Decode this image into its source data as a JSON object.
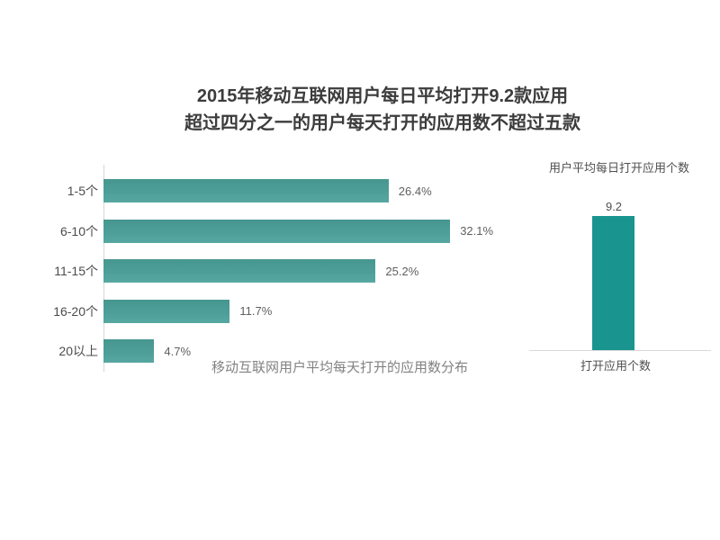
{
  "title": {
    "line1": "2015年移动互联网用户每日平均打开9.2款应用",
    "line2": "超过四分之一的用户每天打开的应用数不超过五款"
  },
  "chart_data": [
    {
      "type": "bar",
      "orientation": "horizontal",
      "title": "移动互联网用户平均每天打开的应用数分布",
      "categories": [
        "1-5个",
        "6-10个",
        "11-15个",
        "16-20个",
        "20以上"
      ],
      "values": [
        26.4,
        32.1,
        25.2,
        11.7,
        4.7
      ],
      "value_labels": [
        "26.4%",
        "32.1%",
        "25.2%",
        "11.7%",
        "4.7%"
      ],
      "unit": "%",
      "xlim": [
        0,
        40
      ],
      "grid": false,
      "legend": "none",
      "bar_color": "#4d9e99"
    },
    {
      "type": "bar",
      "orientation": "vertical",
      "title": "用户平均每日打开应用个数",
      "categories": [
        "打开应用个数"
      ],
      "values": [
        9.2
      ],
      "value_labels": [
        "9.2"
      ],
      "ylim": [
        0,
        10
      ],
      "grid": false,
      "legend": "none",
      "bar_color": "#1a948e"
    }
  ],
  "colors": {
    "hbar_teal": "#4d9e99",
    "vbar_teal": "#1a948e",
    "axis_line": "#d6d6d6",
    "title_text": "#3c3c3c",
    "category_text": "#4c4c4c",
    "value_text": "#5f5f5f",
    "caption_text": "#828282",
    "background": "#ffffff"
  }
}
